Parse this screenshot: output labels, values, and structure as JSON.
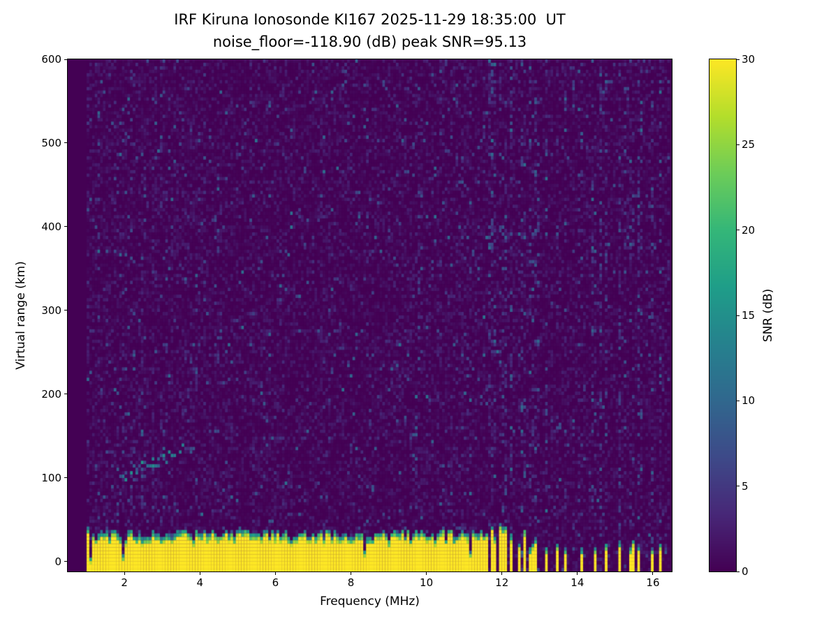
{
  "chart_data": {
    "type": "heatmap",
    "title_line1": "IRF Kiruna Ionosonde KI167 2025-11-29 18:35:00  UT",
    "title_line2": "noise_floor=-118.90 (dB) peak SNR=95.13",
    "station": "IRF Kiruna Ionosonde KI167",
    "timestamp_ut": "2025-11-29 18:35:00 UT",
    "noise_floor_db": -118.9,
    "peak_snr_db": 95.13,
    "xlabel": "Frequency (MHz)",
    "ylabel": "Virtual range (km)",
    "colorbar_label": "SNR (dB)",
    "colormap": "viridis",
    "xlim": [
      0.5,
      16.5
    ],
    "ylim": [
      -12,
      600
    ],
    "clim": [
      0,
      30
    ],
    "xticks": [
      2,
      4,
      6,
      8,
      10,
      12,
      14,
      16
    ],
    "yticks": [
      0,
      100,
      200,
      300,
      400,
      500,
      600
    ],
    "colorbar_ticks": [
      0,
      5,
      10,
      15,
      20,
      25,
      30
    ],
    "freq_range_mhz": [
      1.0,
      16.45
    ],
    "features": {
      "ground_clutter_band": {
        "range_km": [
          -12,
          40
        ],
        "snr_db": 30,
        "typical_top_km": 32,
        "top_jitter_km": 14,
        "transition_km": 9
      },
      "background_noise": {
        "snr_db_range": [
          0,
          2.5
        ]
      },
      "noise_speckle": {
        "base_probability": 0.055,
        "snr_db_range": [
          3,
          12
        ]
      },
      "rfi_stripe_region_mhz": [
        11.6,
        16.45
      ],
      "stripe_dense_region_mhz": [
        11.6,
        13.2
      ],
      "sparse_stripe_freqs_mhz": [
        13.45,
        13.7,
        14.1,
        14.5,
        14.75,
        15.1,
        15.45,
        15.6,
        16.0,
        16.2
      ],
      "es_echo": {
        "freq_mhz": [
          1.9,
          3.6
        ],
        "range_km": [
          100,
          135
        ],
        "snr_db": [
          6,
          16
        ]
      }
    },
    "render": {
      "cols": 215,
      "rows": 148,
      "seed": 167
    },
    "viridis_anchors": [
      [
        68,
        1,
        84
      ],
      [
        72,
        40,
        120
      ],
      [
        62,
        74,
        137
      ],
      [
        49,
        104,
        142
      ],
      [
        38,
        130,
        142
      ],
      [
        31,
        158,
        137
      ],
      [
        53,
        183,
        121
      ],
      [
        109,
        205,
        89
      ],
      [
        180,
        222,
        44
      ],
      [
        253,
        231,
        37
      ]
    ]
  },
  "layout_text": {
    "note": ""
  }
}
